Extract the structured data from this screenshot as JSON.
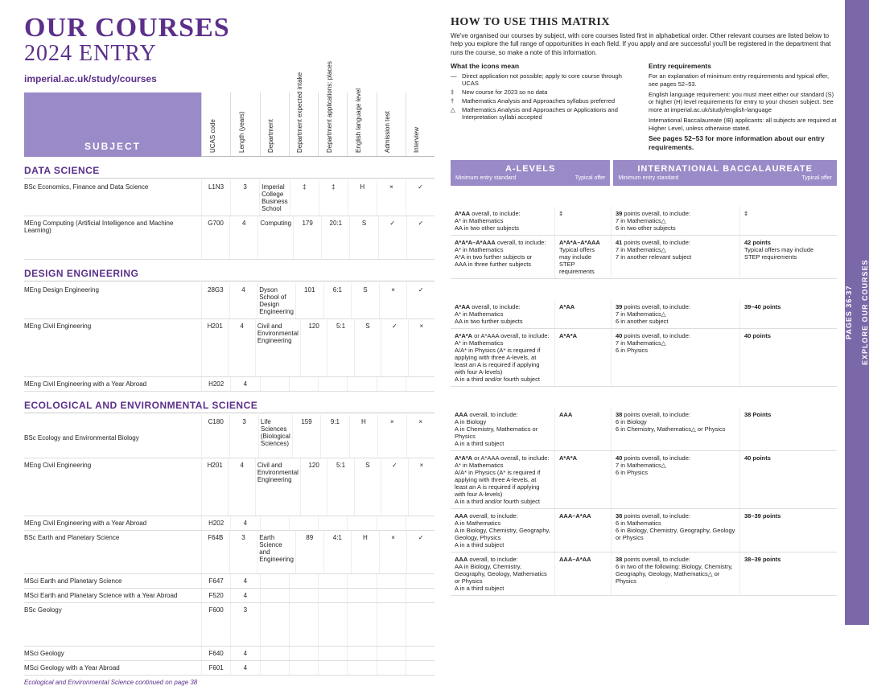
{
  "sideTab": {
    "top": "EXPLORE OUR COURSES",
    "bottom": "PAGES 36-37"
  },
  "header": {
    "line1": "OUR COURSES",
    "line2": "2024 ENTRY",
    "url": "imperial.ac.uk/study/courses",
    "subjectLabel": "SUBJECT"
  },
  "columnHeaders": [
    "UCAS code",
    "Length (years)",
    "Department",
    "Department expected intake",
    "Department applications: places",
    "English language level",
    "Admission test",
    "Interview"
  ],
  "howto": {
    "title": "HOW TO USE THIS MATRIX",
    "desc": "We've organised our courses by subject, with core courses listed first in alphabetical order. Other relevant courses are listed below to help you explore the full range of opportunities in each field. If you apply and are successful you'll be registered in the department that runs the course, so make a note of this information.",
    "iconsTitle": "What the icons mean",
    "icons": [
      {
        "sym": "—",
        "text": "Direct application not possible; apply to core course through UCAS"
      },
      {
        "sym": "‡",
        "text": "New course for 2023 so no data"
      },
      {
        "sym": "†",
        "text": "Mathematics Analysis and Approaches syllabus preferred"
      },
      {
        "sym": "△",
        "text": "Mathematics Analysis and Approaches or Applications and Interpretation syllabi accepted"
      }
    ],
    "entryTitle": "Entry requirements",
    "entryLines": [
      "For an explanation of minimum entry requirements and typical offer, see pages 52–53.",
      "English language requirement: you must meet either our standard (S) or higher (H) level requirements for entry to your chosen subject. See more at imperial.ac.uk/study/english-language",
      "International Baccalaureate (IB) applicants: all subjects are required at Higher Level, unless otherwise stated.",
      "See pages 52–53 for more information about our entry requirements."
    ]
  },
  "reqHeader": {
    "alevels": "A-LEVELS",
    "ib": "INTERNATIONAL BACCALAUREATE",
    "min": "Minimum entry standard",
    "typ": "Typical offer"
  },
  "sections": [
    {
      "title": "DATA SCIENCE",
      "rows": [
        {
          "name": "BSc Economics, Finance and Data Science",
          "c": [
            "L1N3",
            "3",
            "Imperial College Business School",
            "‡",
            "‡",
            "H",
            "×",
            "✓"
          ],
          "a1": "A*AA overall, to include:\nA* in Mathematics\nAA in two other subjects",
          "a2": "‡",
          "b1": "39 points overall, to include:\n7 in Mathematics△\n6 in two other subjects",
          "b2": "‡"
        },
        {
          "name": "MEng Computing (Artificial Intelligence and Machine Learning)",
          "c": [
            "G700",
            "4",
            "Computing",
            "179",
            "20:1",
            "S",
            "✓",
            "✓"
          ],
          "a1": "A*A*A–A*AAA overall, to include:\nA* in Mathematics\nA*A in two further subjects or\nAAA in three further subjects",
          "a2": "A*A*A–A*AAA\nTypical offers may include STEP requirements",
          "b1": "41 points overall, to include:\n7 in Mathematics△\n7 in another relevant subject",
          "b2": "42 points\nTypical offers may include STEP requirements"
        }
      ]
    },
    {
      "title": "DESIGN ENGINEERING",
      "rows": [
        {
          "name": "MEng Design Engineering",
          "c": [
            "28G3",
            "4",
            "Dyson School of Design Engineering",
            "101",
            "6:1",
            "S",
            "×",
            "✓"
          ],
          "a1": "A*AA overall, to include:\nA* in Mathematics\nAA in two further subjects",
          "a2": "A*AA",
          "b1": "39 points overall, to include:\n7 in Mathematics△\n6 in another subject",
          "b2": "39–40 points"
        },
        {
          "name": "MEng Civil Engineering",
          "c": [
            "H201",
            "4",
            "Civil and Environmental Engineering",
            "120",
            "5:1",
            "S",
            "✓",
            "×"
          ],
          "a1": "A*A*A or A*AAA overall, to include:\nA* in Mathematics\nA/A* in Physics (A* is required if applying with three A-levels, at least an A is required if applying with four A-levels)\nA in a third and/or fourth subject",
          "a2": "A*A*A",
          "b1": "40 points overall, to include:\n7 in Mathematics△\n6 in Physics",
          "b2": "40 points"
        },
        {
          "name": "MEng Civil Engineering with a Year Abroad",
          "c": [
            "H202",
            "4",
            "",
            "",
            "",
            "",
            "",
            ""
          ]
        }
      ]
    },
    {
      "title": "ECOLOGICAL AND ENVIRONMENTAL SCIENCE",
      "continued": "Ecological and Environmental Science continued on page 38",
      "rows": [
        {
          "name": "BSc Ecology and Environmental Biology",
          "c": [
            "C180",
            "3",
            "Life Sciences (Biological Sciences)",
            "159",
            "9:1",
            "H",
            "×",
            "×"
          ],
          "nameOffset": true,
          "a1": "AAA overall, to include:\nA in Biology\nA in Chemistry, Mathematics or Physics\nA in a third subject",
          "a2": "AAA",
          "b1": "38 points overall, to include:\n6 in Biology\n6 in Chemistry, Mathematics△ or Physics",
          "b2": "38 Points"
        },
        {
          "name": "MEng Civil Engineering",
          "c": [
            "H201",
            "4",
            "Civil and Environmental Engineering",
            "120",
            "5:1",
            "S",
            "✓",
            "×"
          ],
          "a1": "A*A*A or A*AAA overall, to include:\nA* in Mathematics\nA/A* in Physics (A* is required if applying with three A-levels, at least an A is required if applying with four A-levels)\nA in a third and/or fourth subject",
          "a2": "A*A*A",
          "b1": "40 points overall, to include:\n7 in Mathematics△\n6 in Physics",
          "b2": "40 points"
        },
        {
          "name": "MEng Civil Engineering with a Year Abroad",
          "c": [
            "H202",
            "4",
            "",
            "",
            "",
            "",
            "",
            ""
          ]
        },
        {
          "name": "BSc Earth and Planetary Science",
          "c": [
            "F64B",
            "3",
            "Earth Science and Engineering",
            "89",
            "4:1",
            "H",
            "×",
            "✓"
          ],
          "a1": "AAA overall, to include:\nA in Mathematics\nA in Biology, Chemistry, Geography, Geology, Physics\nA in a third subject",
          "a2": "AAA–A*AA",
          "b1": "38 points overall, to include:\n6 in Mathematics\n6 in Biology, Chemistry, Geography, Geology or Physics",
          "b2": "38–39 points"
        },
        {
          "name": "MSci Earth and Planetary Science",
          "c": [
            "F647",
            "4",
            "",
            "",
            "",
            "",
            "",
            ""
          ]
        },
        {
          "name": "MSci Earth and Planetary Science with a Year Abroad",
          "c": [
            "F520",
            "4",
            "",
            "",
            "",
            "",
            "",
            ""
          ]
        },
        {
          "name": "BSc Geology",
          "c": [
            "F600",
            "3",
            "",
            "",
            "",
            "",
            "",
            ""
          ],
          "a1": "AAA overall, to include:\nAA in Biology, Chemistry, Geography, Geology, Mathematics or Physics\nA in a third subject",
          "a2": "AAA–A*AA",
          "b1": "38 points overall, to include:\n6 in two of the following: Biology, Chemistry, Geography, Geology, Mathematics△ or Physics",
          "b2": "38–39 points"
        },
        {
          "name": "MSci Geology",
          "c": [
            "F640",
            "4",
            "",
            "",
            "",
            "",
            "",
            ""
          ]
        },
        {
          "name": "MSci Geology with a Year Abroad",
          "c": [
            "F601",
            "4",
            "",
            "",
            "",
            "",
            "",
            ""
          ]
        }
      ]
    }
  ]
}
